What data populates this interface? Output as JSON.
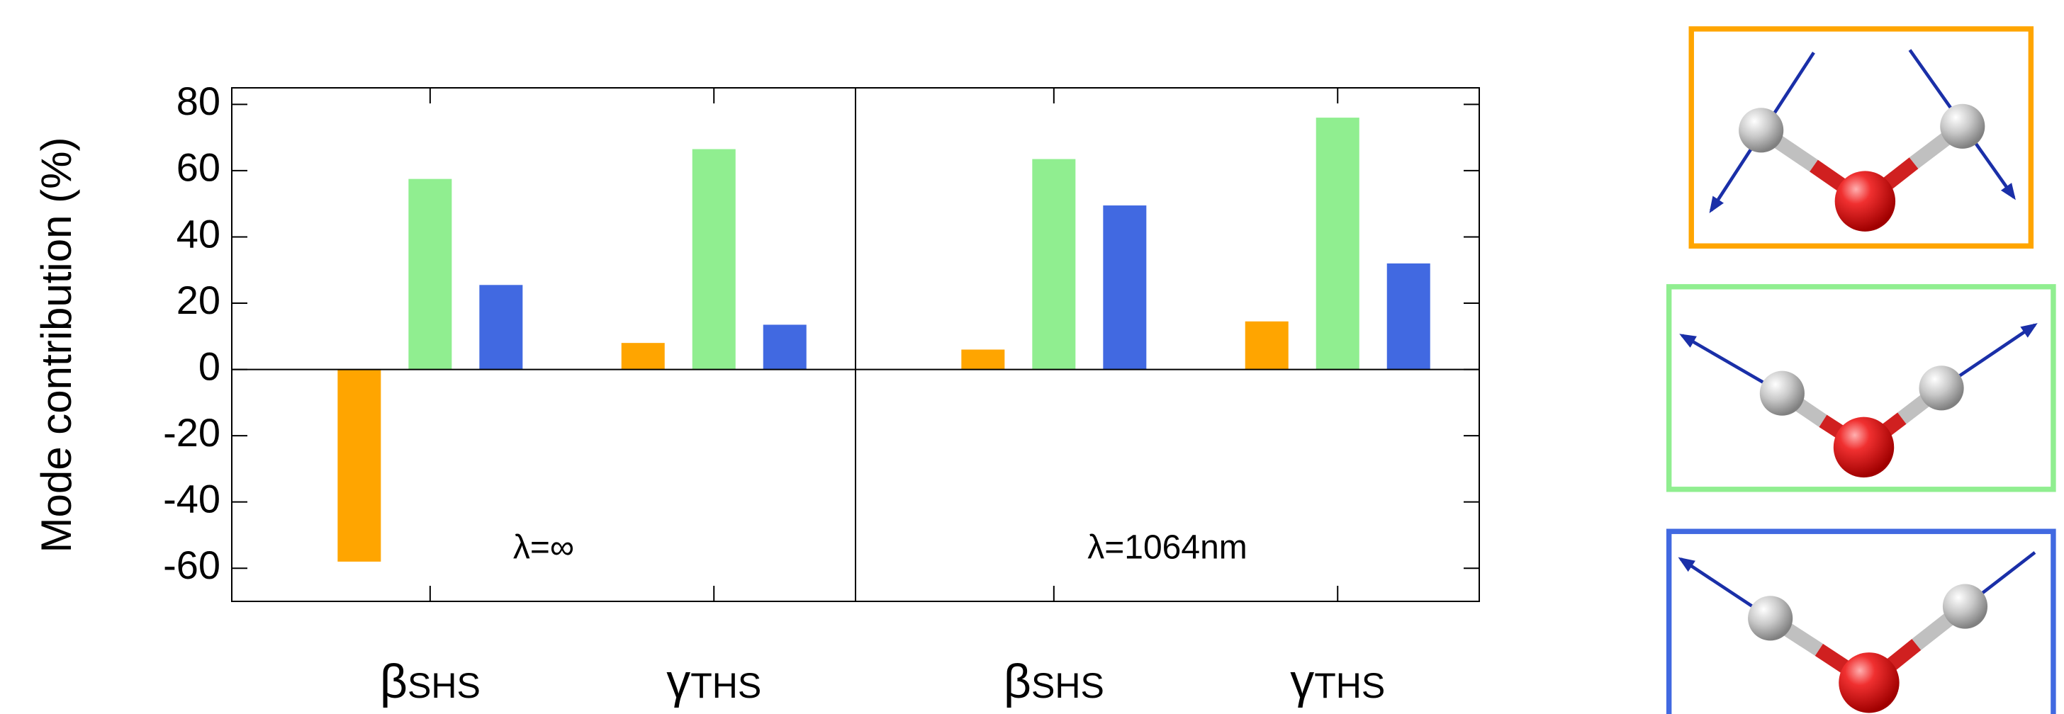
{
  "chart_data": {
    "type": "bar",
    "ylabel": "Mode contribution (%)",
    "categories": [
      {
        "main": "β",
        "sub": "SHS"
      },
      {
        "main": "γ",
        "sub": "THS"
      },
      {
        "main": "β",
        "sub": "SHS"
      },
      {
        "main": "γ",
        "sub": "THS"
      }
    ],
    "annotations": [
      "λ=∞",
      "λ=1064nm"
    ],
    "series": [
      {
        "color": "#ffa500",
        "values": [
          -58,
          8,
          6,
          14.5
        ]
      },
      {
        "color": "#90ee90",
        "values": [
          57.5,
          66.5,
          63.5,
          76
        ]
      },
      {
        "color": "#4169e1",
        "values": [
          25.5,
          13.5,
          49.5,
          32
        ]
      }
    ],
    "ylim": [
      -70,
      85
    ],
    "yticks": [
      -60,
      -40,
      -20,
      0,
      20,
      40,
      60,
      80
    ],
    "grid": false
  }
}
